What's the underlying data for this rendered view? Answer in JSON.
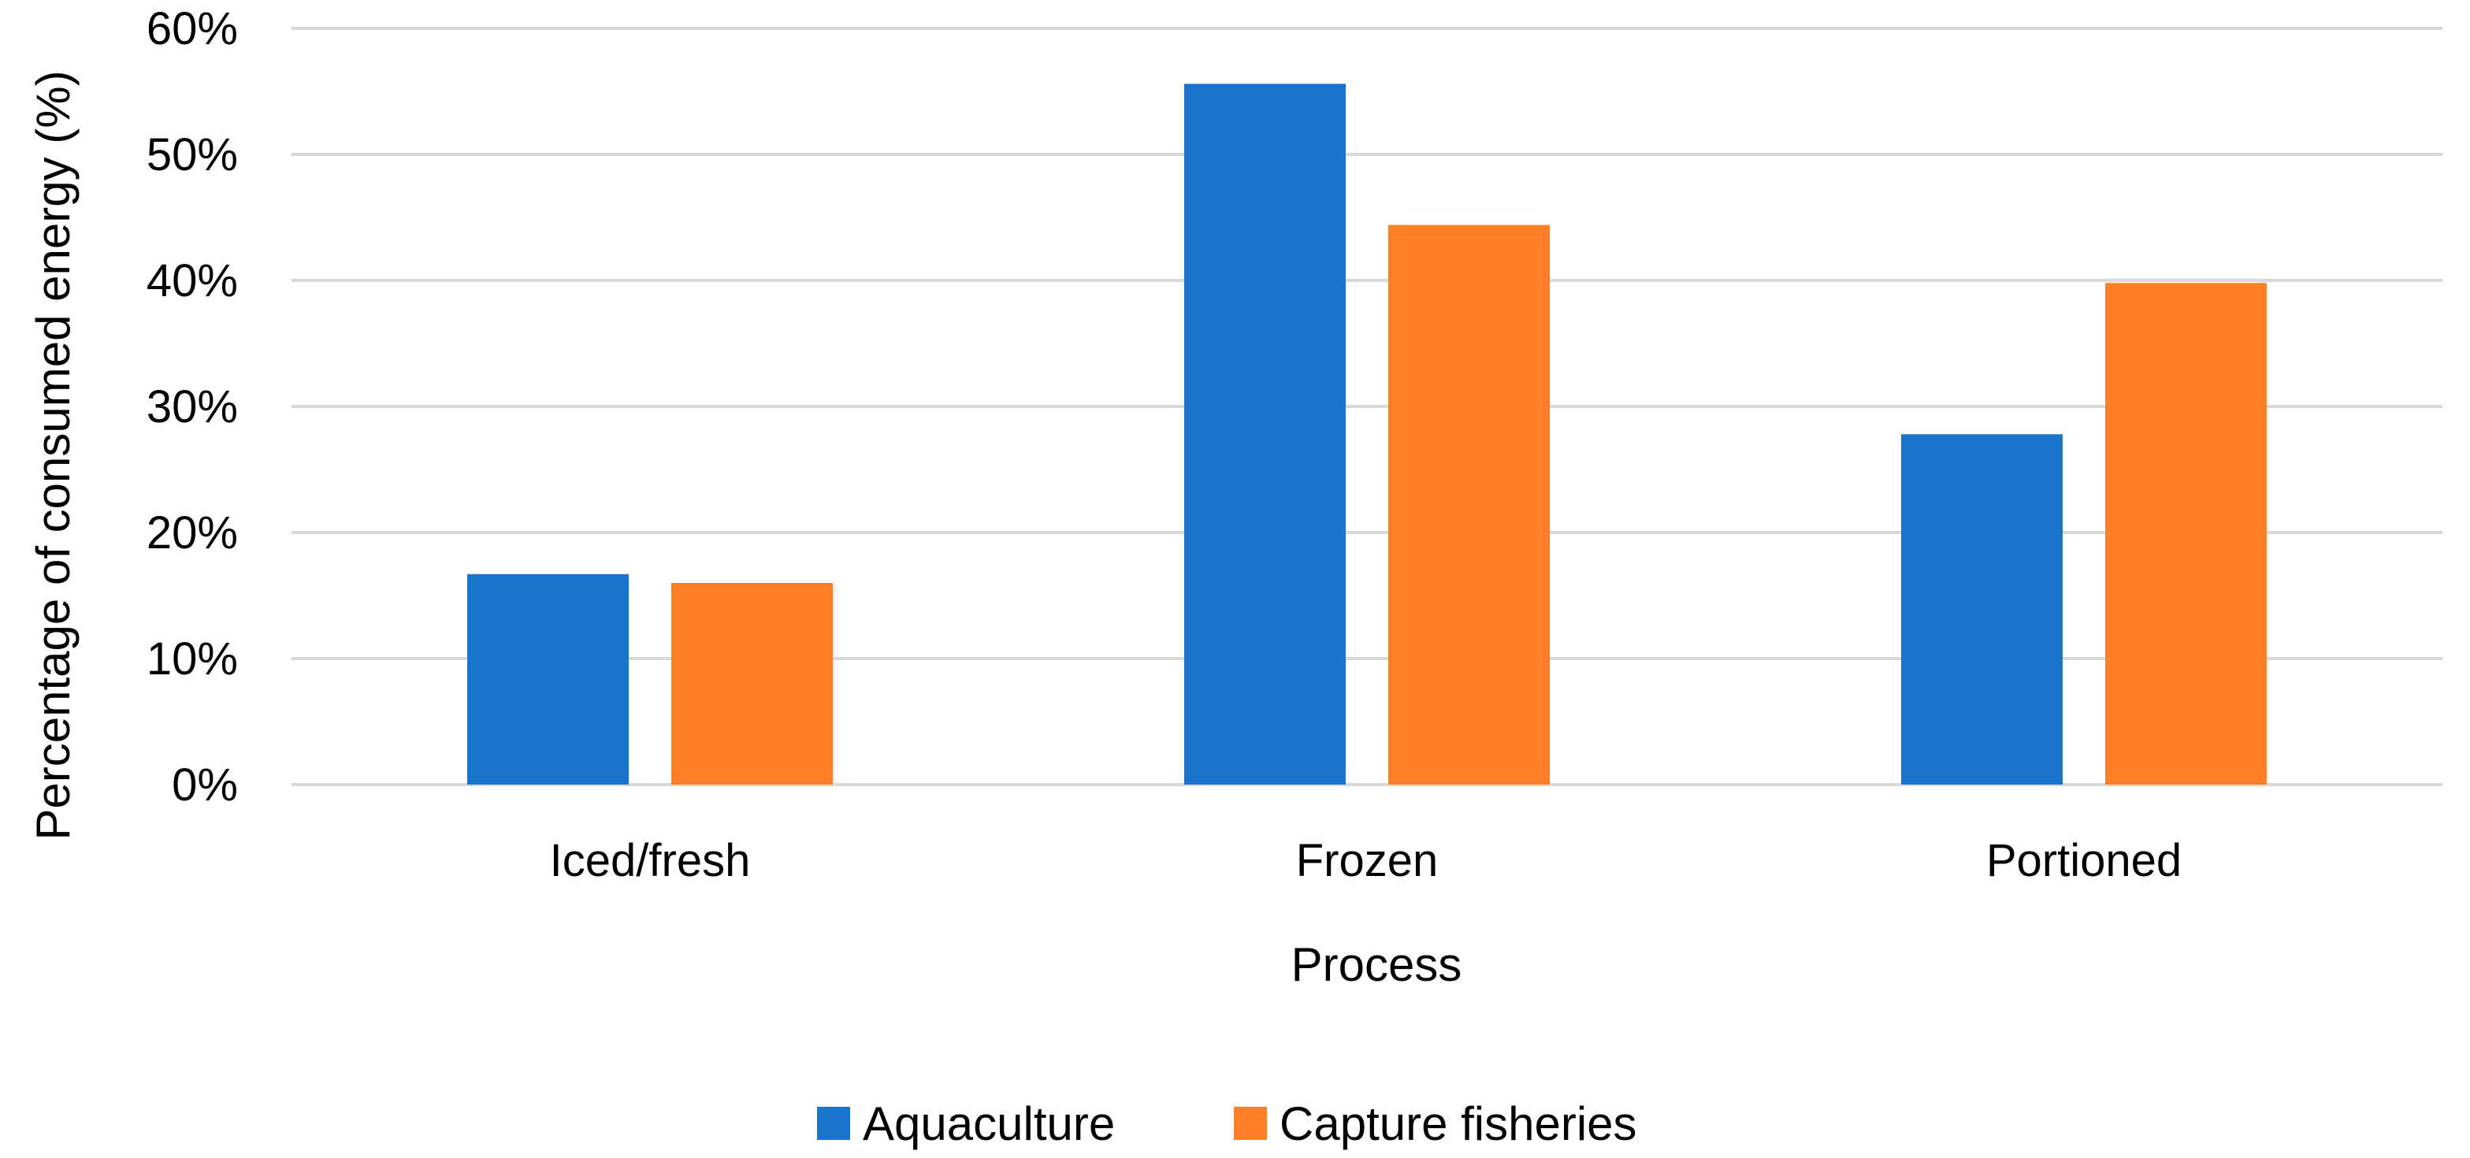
{
  "chart_data": {
    "type": "bar",
    "title": "",
    "xlabel": "Process",
    "ylabel": "Percentage of consumed energy (%)",
    "categories": [
      "Iced/fresh",
      "Frozen",
      "Portioned"
    ],
    "series": [
      {
        "name": "Aquaculture",
        "values": [
          0.167,
          0.556,
          0.278
        ],
        "color": "#1874CD"
      },
      {
        "name": "Capture fisheries",
        "values": [
          0.16,
          0.444,
          0.398
        ],
        "color": "#FF7F27"
      }
    ],
    "ylim": [
      0,
      0.6
    ],
    "yticks": [
      0,
      0.1,
      0.2,
      0.3,
      0.4,
      0.5,
      0.6
    ],
    "ytick_labels": [
      "0%",
      "10%",
      "20%",
      "30%",
      "40%",
      "50%",
      "60%"
    ],
    "grid": true,
    "legend_position": "bottom-center",
    "gridline_color": "#D9D9D9"
  }
}
